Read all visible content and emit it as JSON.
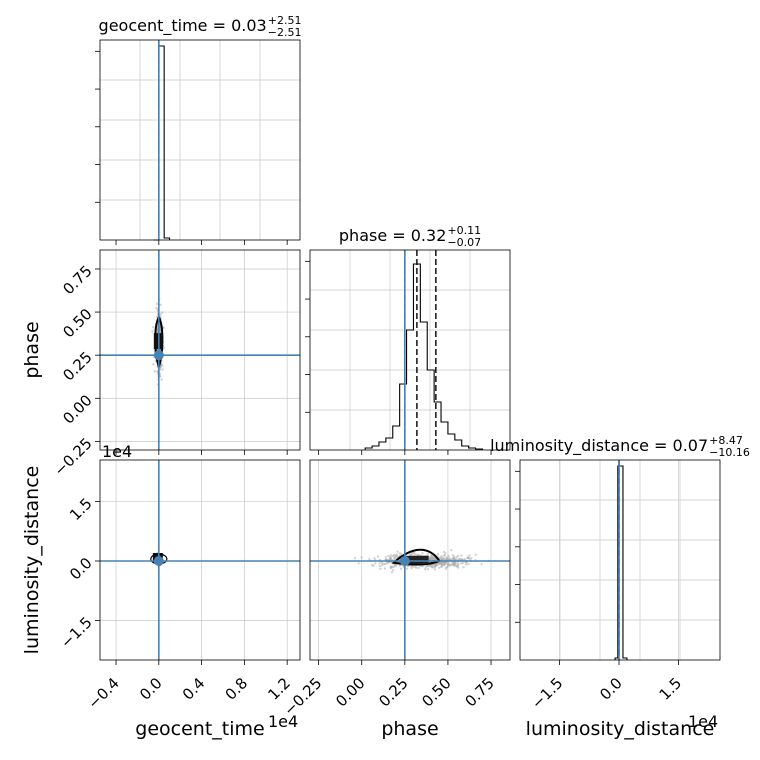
{
  "chart_data": {
    "type": "corner",
    "parameters": [
      "geocent_time",
      "phase",
      "luminosity_distance"
    ],
    "truths": [
      0.0,
      0.25,
      0.0
    ],
    "truth_color": "#4682b4",
    "axis_ranges": {
      "geocent_time": [
        -0.55,
        1.32
      ],
      "phase": [
        -0.3,
        0.86
      ],
      "luminosity_distance": [
        -2.5,
        2.55
      ]
    },
    "offset_text": {
      "geocent_time": "1e4",
      "luminosity_distance_y": "1e4",
      "luminosity_distance_x": "1e4"
    },
    "tick_labels": {
      "geocent_time_x": [
        {
          "v": -0.4,
          "t": "−0.4"
        },
        {
          "v": 0.0,
          "t": "0.0"
        },
        {
          "v": 0.4,
          "t": "0.4"
        },
        {
          "v": 0.8,
          "t": "0.8"
        },
        {
          "v": 1.2,
          "t": "1.2"
        }
      ],
      "phase_x": [
        {
          "v": -0.25,
          "t": "−0.25"
        },
        {
          "v": 0.0,
          "t": "0.00"
        },
        {
          "v": 0.25,
          "t": "0.25"
        },
        {
          "v": 0.5,
          "t": "0.50"
        },
        {
          "v": 0.75,
          "t": "0.75"
        }
      ],
      "phase_y": [
        {
          "v": -0.25,
          "t": "−0.25"
        },
        {
          "v": 0.0,
          "t": "0.00"
        },
        {
          "v": 0.25,
          "t": "0.25"
        },
        {
          "v": 0.5,
          "t": "0.50"
        },
        {
          "v": 0.75,
          "t": "0.75"
        }
      ],
      "luminosity_distance_x": [
        {
          "v": -1.5,
          "t": "−1.5"
        },
        {
          "v": 0.0,
          "t": "0.0"
        },
        {
          "v": 1.5,
          "t": "1.5"
        }
      ],
      "luminosity_distance_y": [
        {
          "v": -1.5,
          "t": "−1.5"
        },
        {
          "v": 0.0,
          "t": "0.0"
        },
        {
          "v": 1.5,
          "t": "1.5"
        }
      ]
    },
    "axis_labels": {
      "geocent_time": "geocent_time",
      "phase": "phase",
      "luminosity_distance": "luminosity_distance"
    },
    "titles": [
      {
        "param": "geocent_time",
        "label": "geocent_time = 0.03",
        "plus": "+2.51",
        "minus": "−2.51"
      },
      {
        "param": "phase",
        "label": "phase = 0.32",
        "plus": "+0.11",
        "minus": "−0.07"
      },
      {
        "param": "luminosity_distance",
        "label": "luminosity_distance = 0.07",
        "plus": "+8.47",
        "minus": "−10.16"
      }
    ],
    "histograms": {
      "geocent_time": {
        "bins": [
          [
            -0.05,
            0.0
          ],
          [
            0.0,
            0.05
          ],
          [
            0.05,
            0.1
          ]
        ],
        "heights": [
          0,
          0.97,
          0.01
        ],
        "quantiles": [
          0.0
        ]
      },
      "phase": {
        "edges": [
          0.02,
          0.06,
          0.1,
          0.14,
          0.18,
          0.22,
          0.26,
          0.3,
          0.34,
          0.38,
          0.42,
          0.46,
          0.5,
          0.54,
          0.58,
          0.62,
          0.66,
          0.7
        ],
        "heights": [
          0.01,
          0.02,
          0.04,
          0.06,
          0.12,
          0.33,
          0.6,
          0.93,
          0.64,
          0.4,
          0.24,
          0.14,
          0.08,
          0.05,
          0.02,
          0.01,
          0.005
        ],
        "quantiles": [
          0.25,
          0.32,
          0.43
        ]
      },
      "luminosity_distance": {
        "bins": [
          [
            -0.1,
            -0.03
          ],
          [
            -0.03,
            0.1
          ],
          [
            0.1,
            0.2
          ]
        ],
        "heights": [
          0.01,
          0.97,
          0.01
        ],
        "quantiles": [
          0.0
        ]
      }
    },
    "contours": {
      "phase_vs_geocent_time": {
        "center": [
          0.0,
          0.32
        ],
        "half_widths": [
          0.04,
          0.15
        ]
      },
      "luminosity_distance_vs_geocent_time": {
        "center": [
          0.0,
          0.05
        ],
        "half_widths": [
          0.04,
          0.1
        ]
      },
      "luminosity_distance_vs_phase": {
        "center": [
          0.33,
          0.03
        ],
        "half_widths": [
          0.12,
          0.15
        ]
      }
    },
    "grid": true
  }
}
